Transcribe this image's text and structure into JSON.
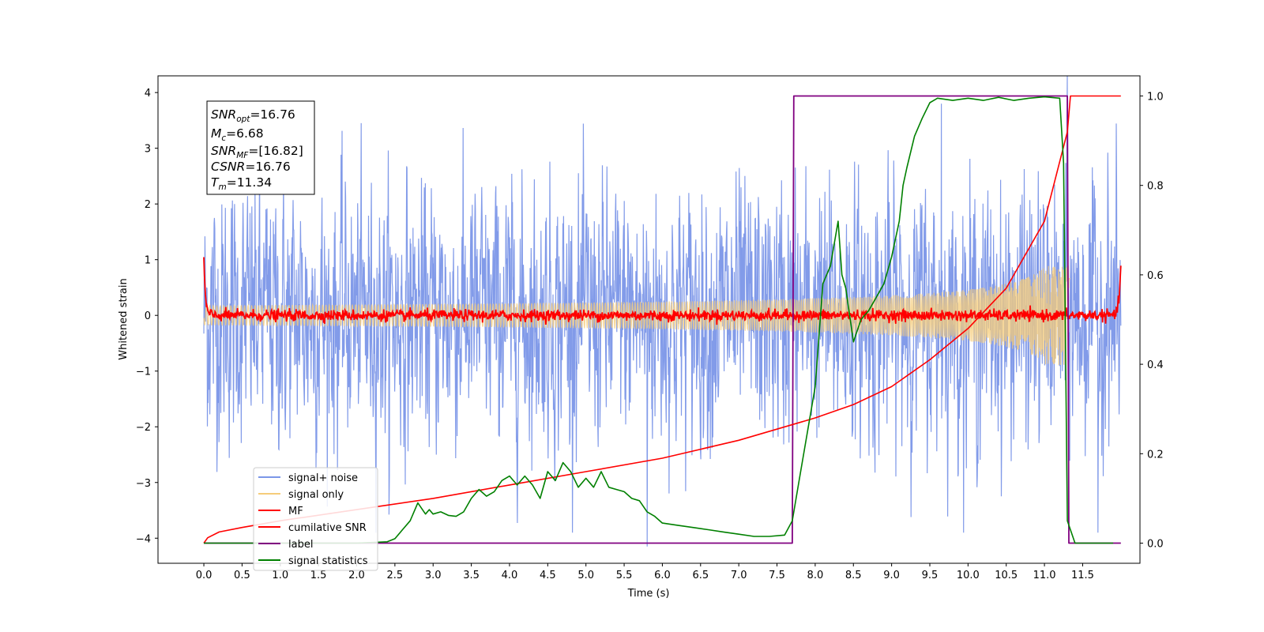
{
  "chart_data": {
    "type": "line",
    "xlabel": "Time (s)",
    "ylabel": "Whitened strain",
    "xlim": [
      -0.6,
      12.25
    ],
    "ylim": [
      -4.45,
      4.3
    ],
    "y2lim": [
      -0.045,
      1.045
    ],
    "xticks": [
      "0.0",
      "0.5",
      "1.0",
      "1.5",
      "2.0",
      "2.5",
      "3.0",
      "3.5",
      "4.0",
      "4.5",
      "5.0",
      "5.5",
      "6.0",
      "6.5",
      "7.0",
      "7.5",
      "8.0",
      "8.5",
      "9.0",
      "9.5",
      "10.0",
      "10.5",
      "11.0",
      "11.5"
    ],
    "xtick_values": [
      0,
      0.5,
      1,
      1.5,
      2,
      2.5,
      3,
      3.5,
      4,
      4.5,
      5,
      5.5,
      6,
      6.5,
      7,
      7.5,
      8,
      8.5,
      9,
      9.5,
      10,
      10.5,
      11,
      11.5
    ],
    "yticks": [
      "4",
      "3",
      "2",
      "1",
      "0",
      "−1",
      "−2",
      "−3",
      "−4"
    ],
    "ytick_values": [
      4,
      3,
      2,
      1,
      0,
      -1,
      -2,
      -3,
      -4
    ],
    "y2ticks": [
      "1.0",
      "0.8",
      "0.6",
      "0.4",
      "0.2",
      "0.0"
    ],
    "y2tick_values": [
      1,
      0.8,
      0.6,
      0.4,
      0.2,
      0
    ],
    "annotation": {
      "lines": [
        {
          "main": "SNR",
          "sub": "opt",
          "value": "=16.76"
        },
        {
          "main": "M",
          "sub": "c",
          "value": "=6.68"
        },
        {
          "main": "SNR",
          "sub": "MF",
          "value": "=[16.82]"
        },
        {
          "main": "CSNR",
          "sub": "",
          "value": "=16.76"
        },
        {
          "main": "T",
          "sub": "m",
          "value": "=11.34"
        }
      ]
    },
    "legend": {
      "placement": "lower-left",
      "entries": [
        {
          "label": "signal+ noise",
          "color": "#7b96e8"
        },
        {
          "label": "signal only",
          "color": "#f5cc7a"
        },
        {
          "label": "MF",
          "color": "#ff0000"
        },
        {
          "label": "cumilative SNR",
          "color": "#ff0000"
        },
        {
          "label": "label",
          "color": "#800080"
        },
        {
          "label": "signal statistics",
          "color": "#008000"
        }
      ]
    },
    "series": [
      {
        "name": "signal+ noise",
        "axis": "left",
        "color": "#7b96e8",
        "kind": "noise",
        "t_range": [
          0,
          12.0
        ],
        "std": 1.05,
        "peaks": [
          {
            "t": 5.8,
            "y": -4.15
          },
          {
            "t": 9.65,
            "y": 3.8
          },
          {
            "t": 11.3,
            "y": 4.3
          },
          {
            "t": 11.7,
            "y": -3.9
          }
        ]
      },
      {
        "name": "signal only",
        "axis": "left",
        "color": "#f5cc7a",
        "kind": "chirp",
        "t_range": [
          0,
          11.34
        ],
        "envelope_end": 0.85
      },
      {
        "name": "MF",
        "axis": "left",
        "color": "#ff0000",
        "kind": "mf",
        "t_range": [
          0,
          12.0
        ],
        "edge_value": 1.0,
        "std": 0.05
      },
      {
        "name": "cumilative SNR",
        "axis": "right",
        "color": "#ff0000",
        "t": [
          0.0,
          0.05,
          0.2,
          0.5,
          1.0,
          2.0,
          3.0,
          4.0,
          5.0,
          6.0,
          7.0,
          7.5,
          8.0,
          8.5,
          9.0,
          9.5,
          10.0,
          10.5,
          11.0,
          11.3,
          11.34,
          11.5,
          12.0
        ],
        "y": [
          0.0,
          0.012,
          0.025,
          0.035,
          0.05,
          0.075,
          0.1,
          0.13,
          0.16,
          0.19,
          0.23,
          0.255,
          0.28,
          0.31,
          0.35,
          0.41,
          0.48,
          0.57,
          0.72,
          0.92,
          1.0,
          1.0,
          1.0
        ]
      },
      {
        "name": "label",
        "axis": "right",
        "color": "#800080",
        "t": [
          0.0,
          7.7,
          7.72,
          11.3,
          11.32,
          12.0
        ],
        "y": [
          0.0,
          0.0,
          1.0,
          1.0,
          0.0,
          0.0
        ]
      },
      {
        "name": "signal statistics",
        "axis": "right",
        "color": "#008000",
        "t": [
          0.0,
          1.0,
          2.0,
          2.4,
          2.5,
          2.6,
          2.7,
          2.8,
          2.9,
          2.95,
          3.0,
          3.1,
          3.2,
          3.3,
          3.4,
          3.5,
          3.6,
          3.7,
          3.8,
          3.9,
          4.0,
          4.1,
          4.2,
          4.3,
          4.4,
          4.5,
          4.6,
          4.7,
          4.8,
          4.9,
          5.0,
          5.1,
          5.2,
          5.3,
          5.4,
          5.5,
          5.6,
          5.7,
          5.8,
          5.9,
          6.0,
          6.2,
          6.4,
          6.6,
          6.8,
          7.0,
          7.2,
          7.4,
          7.6,
          7.7,
          7.8,
          7.9,
          8.0,
          8.1,
          8.2,
          8.3,
          8.35,
          8.4,
          8.5,
          8.6,
          8.7,
          8.8,
          8.9,
          9.0,
          9.1,
          9.15,
          9.2,
          9.3,
          9.4,
          9.5,
          9.6,
          9.8,
          10.0,
          10.2,
          10.4,
          10.6,
          10.8,
          11.0,
          11.2,
          11.25,
          11.3,
          11.4,
          11.6,
          11.9
        ],
        "y": [
          0.0,
          0.0,
          0.0,
          0.003,
          0.01,
          0.03,
          0.05,
          0.09,
          0.065,
          0.075,
          0.065,
          0.07,
          0.062,
          0.06,
          0.07,
          0.1,
          0.12,
          0.105,
          0.115,
          0.14,
          0.15,
          0.13,
          0.15,
          0.13,
          0.1,
          0.16,
          0.14,
          0.18,
          0.16,
          0.125,
          0.145,
          0.125,
          0.16,
          0.125,
          0.12,
          0.115,
          0.1,
          0.095,
          0.07,
          0.06,
          0.045,
          0.04,
          0.035,
          0.03,
          0.025,
          0.02,
          0.015,
          0.015,
          0.018,
          0.05,
          0.15,
          0.25,
          0.35,
          0.58,
          0.62,
          0.72,
          0.6,
          0.57,
          0.45,
          0.5,
          0.52,
          0.55,
          0.58,
          0.64,
          0.72,
          0.8,
          0.84,
          0.91,
          0.95,
          0.985,
          0.995,
          0.99,
          0.995,
          0.99,
          0.997,
          0.99,
          0.995,
          0.998,
          0.995,
          0.85,
          0.05,
          0.0,
          0.0,
          0.0
        ]
      }
    ]
  }
}
